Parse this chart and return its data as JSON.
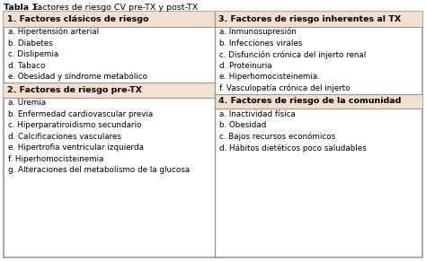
{
  "title_bold": "Tabla 1:",
  "title_normal": " Factores de riesgo CV pre-TX y post-TX",
  "header_bg": "#f2dfd0",
  "body_bg": "#ffffff",
  "border_color": "#999999",
  "left_col": {
    "header1": "1. Factores clásicos de riesgo",
    "items1": [
      "a. Hipertensión arterial",
      "b. Diabetes",
      "c. Dislipemia",
      "d. Tabaco",
      "e. Obesidad y síndrome metabólico"
    ],
    "header2": "2. Factores de riesgo pre-TX",
    "items2": [
      "a. Uremia",
      "b. Enfermedad cardiovascular previa",
      "c. Hiperparatiroidismo secundario",
      "d. Calcificaciones vasculares",
      "e. Hipertrofia ventricular izquierda",
      "f. Hiperhomocisteinemia",
      "g. Alteraciones del metabolismo de la glucosa"
    ]
  },
  "right_col": {
    "header3": "3. Factores de riesgo inherentes al TX",
    "items3": [
      "a. Inmunosupresión",
      "b. Infecciones virales",
      "c. Disfunción crónica del injerto renal",
      "d. Proteinuria",
      "e. Hiperhomocisteinemia.",
      "f. Vasculopatía crónica del injerto"
    ],
    "header4": "4. Factores de riesgo de la comunidad",
    "items4": [
      "a. Inactividad física",
      "b. Obesidad",
      "c. Bajos recursos económicos",
      "d. Hábitos dietéticos poco saludables"
    ]
  },
  "font_size_title": 6.8,
  "font_size_header": 6.8,
  "font_size_body": 6.3
}
